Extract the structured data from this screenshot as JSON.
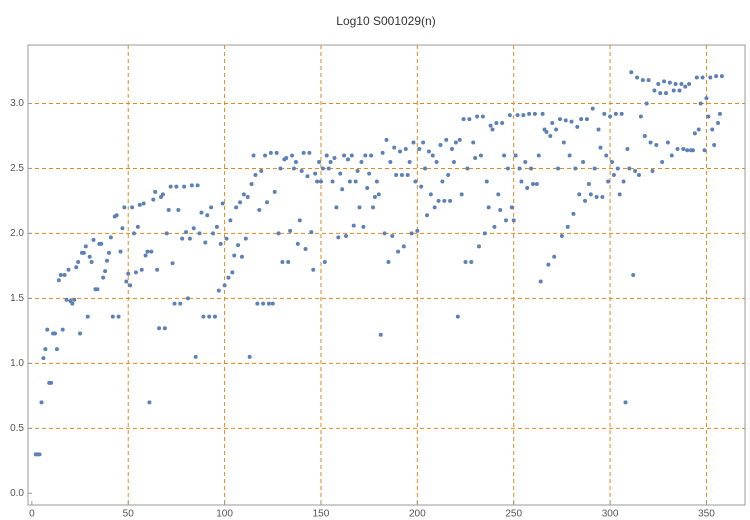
{
  "chart_data": {
    "type": "scatter",
    "title": "Log10 S001029(n)",
    "color": "#5e81b5",
    "grid": true,
    "grid_color": "#e08a1e",
    "xlim": [
      -2,
      370
    ],
    "ylim": [
      -0.09,
      3.45
    ],
    "xticks": [
      0,
      50,
      100,
      150,
      200,
      250,
      300,
      350
    ],
    "yticks": [
      {
        "value": 0,
        "label": "0.0"
      },
      {
        "value": 0.5,
        "label": "0.5"
      },
      {
        "value": 1,
        "label": "1.0"
      },
      {
        "value": 1.5,
        "label": "1.5"
      },
      {
        "value": 2,
        "label": "2.0"
      },
      {
        "value": 2.5,
        "label": "2.5"
      },
      {
        "value": 3,
        "label": "3.0"
      }
    ],
    "x": [
      2,
      3,
      4,
      5,
      6,
      7,
      8,
      9,
      10,
      11,
      12,
      13,
      14,
      15,
      16,
      17,
      18,
      19,
      20,
      21,
      22,
      23,
      24,
      25,
      26,
      27,
      28,
      29,
      30,
      31,
      32,
      33,
      34,
      35,
      36,
      37,
      38,
      39,
      40,
      41,
      42,
      43,
      44,
      45,
      46,
      47,
      48,
      49,
      50,
      51,
      52,
      53,
      54,
      55,
      56,
      57,
      58,
      59,
      60,
      61,
      62,
      63,
      64,
      65,
      66,
      67,
      68,
      69,
      70,
      71,
      72,
      73,
      74,
      75,
      76,
      77,
      78,
      79,
      80,
      81,
      82,
      83,
      84,
      85,
      86,
      87,
      88,
      89,
      90,
      91,
      92,
      93,
      94,
      95,
      96,
      97,
      98,
      99,
      100,
      101,
      102,
      103,
      104,
      105,
      106,
      107,
      108,
      109,
      110,
      111,
      112,
      113,
      114,
      115,
      116,
      117,
      118,
      119,
      120,
      121,
      122,
      123,
      124,
      125,
      126,
      127,
      128,
      129,
      130,
      131,
      132,
      133,
      134,
      135,
      136,
      137,
      138,
      139,
      140,
      141,
      142,
      143,
      144,
      145,
      146,
      147,
      148,
      149,
      150,
      151,
      152,
      153,
      154,
      155,
      156,
      157,
      158,
      159,
      160,
      161,
      162,
      163,
      164,
      165,
      166,
      167,
      168,
      169,
      170,
      171,
      172,
      173,
      174,
      175,
      176,
      177,
      178,
      179,
      180,
      181,
      182,
      183,
      184,
      185,
      186,
      187,
      188,
      189,
      190,
      191,
      192,
      193,
      194,
      195,
      196,
      197,
      198,
      199,
      200,
      201,
      202,
      203,
      204,
      205,
      206,
      207,
      208,
      209,
      210,
      211,
      212,
      213,
      214,
      215,
      216,
      217,
      218,
      219,
      220,
      221,
      222,
      223,
      224,
      225,
      226,
      227,
      228,
      229,
      230,
      231,
      232,
      233,
      234,
      235,
      236,
      237,
      238,
      239,
      240,
      241,
      242,
      243,
      244,
      245,
      246,
      247,
      248,
      249,
      250,
      251,
      252,
      253,
      254,
      255,
      256,
      257,
      258,
      259,
      260,
      261,
      262,
      263,
      264,
      265,
      266,
      267,
      268,
      269,
      270,
      271,
      272,
      273,
      274,
      275,
      276,
      277,
      278,
      279,
      280,
      281,
      282,
      283,
      284,
      285,
      286,
      287,
      288,
      289,
      290,
      291,
      292,
      293,
      294,
      295,
      296,
      297,
      298,
      299,
      300,
      301,
      302,
      303,
      304,
      305,
      306,
      307,
      308,
      309,
      310,
      311,
      312,
      313,
      314,
      315,
      316,
      317,
      318,
      319,
      320,
      321,
      322,
      323,
      324,
      325,
      326,
      327,
      328,
      329,
      330,
      331,
      332,
      333,
      334,
      335,
      336,
      337,
      338,
      339,
      340,
      341,
      342,
      343,
      344,
      345,
      346,
      347,
      348,
      349,
      350,
      351,
      352,
      353,
      354,
      355,
      356,
      357,
      358
    ],
    "values": [
      0.3,
      0.3,
      0.3,
      0.7,
      1.04,
      1.11,
      1.26,
      0.85,
      0.85,
      1.23,
      1.23,
      1.11,
      1.64,
      1.68,
      1.26,
      1.68,
      1.49,
      1.72,
      1.48,
      1.46,
      1.49,
      1.74,
      1.78,
      1.23,
      1.85,
      1.85,
      1.9,
      1.36,
      1.82,
      1.78,
      1.95,
      1.57,
      1.57,
      1.92,
      1.92,
      1.66,
      1.71,
      1.79,
      1.85,
      1.97,
      1.36,
      2.13,
      2.14,
      1.36,
      1.86,
      2.04,
      2.2,
      1.63,
      1.69,
      1.6,
      2.2,
      2.0,
      1.7,
      2.05,
      2.22,
      1.72,
      2.23,
      1.83,
      1.86,
      0.7,
      1.86,
      2.26,
      2.32,
      1.72,
      1.27,
      2.28,
      2.3,
      1.27,
      2.0,
      2.18,
      2.36,
      1.77,
      1.46,
      2.36,
      2.18,
      1.46,
      1.96,
      2.36,
      2.01,
      1.5,
      1.96,
      2.37,
      2.04,
      1.05,
      2.37,
      2.0,
      2.16,
      1.36,
      1.93,
      2.14,
      1.36,
      2.2,
      2.0,
      1.36,
      2.05,
      1.56,
      1.92,
      2.23,
      1.6,
      1.96,
      1.66,
      2.1,
      1.7,
      1.83,
      2.2,
      1.91,
      2.24,
      1.82,
      2.3,
      1.96,
      2.28,
      1.05,
      2.38,
      2.6,
      2.45,
      1.46,
      2.18,
      2.48,
      1.46,
      2.6,
      2.24,
      1.46,
      2.62,
      1.46,
      2.32,
      2.62,
      2.0,
      2.5,
      1.78,
      2.57,
      2.58,
      1.78,
      2.02,
      2.6,
      2.5,
      2.55,
      1.92,
      2.1,
      2.48,
      2.62,
      1.88,
      2.44,
      2.62,
      2.01,
      1.72,
      2.46,
      2.4,
      2.55,
      2.4,
      2.5,
      1.78,
      2.6,
      2.5,
      2.55,
      2.4,
      2.58,
      2.2,
      1.97,
      2.46,
      2.34,
      2.6,
      1.98,
      2.57,
      2.4,
      2.6,
      2.06,
      2.4,
      2.48,
      2.2,
      2.55,
      2.05,
      2.6,
      2.35,
      2.46,
      2.6,
      2.2,
      2.28,
      2.4,
      2.3,
      1.22,
      2.62,
      2.0,
      2.72,
      1.78,
      2.55,
      1.98,
      2.66,
      2.45,
      1.86,
      2.63,
      2.45,
      1.9,
      2.65,
      2.45,
      2.55,
      2.0,
      2.7,
      2.4,
      2.02,
      2.65,
      2.36,
      2.7,
      2.5,
      2.14,
      2.63,
      2.3,
      2.6,
      2.2,
      2.55,
      2.25,
      2.68,
      2.4,
      2.25,
      2.72,
      2.45,
      2.25,
      2.65,
      2.55,
      2.7,
      1.36,
      2.72,
      2.3,
      2.88,
      1.78,
      2.5,
      2.88,
      1.78,
      2.7,
      2.58,
      2.9,
      1.9,
      2.6,
      2.9,
      2.0,
      2.4,
      2.2,
      2.83,
      2.8,
      2.05,
      2.85,
      2.3,
      2.18,
      2.85,
      2.6,
      2.1,
      2.5,
      2.91,
      2.2,
      2.1,
      2.6,
      2.91,
      2.5,
      2.4,
      2.91,
      2.55,
      2.35,
      2.92,
      2.5,
      2.38,
      2.92,
      2.38,
      2.6,
      1.63,
      2.92,
      2.8,
      2.78,
      1.76,
      2.75,
      2.85,
      1.82,
      2.8,
      2.5,
      2.88,
      1.98,
      2.7,
      2.87,
      2.05,
      2.6,
      2.86,
      2.15,
      2.5,
      2.82,
      2.3,
      2.88,
      2.55,
      2.25,
      2.88,
      2.38,
      2.3,
      2.96,
      2.5,
      2.28,
      2.8,
      2.66,
      2.28,
      2.92,
      2.6,
      2.4,
      2.9,
      2.55,
      2.45,
      2.92,
      2.5,
      2.3,
      2.92,
      2.4,
      0.7,
      2.65,
      2.5,
      3.24,
      1.68,
      2.48,
      3.2,
      2.45,
      2.9,
      3.18,
      2.75,
      3.0,
      3.18,
      2.7,
      2.48,
      3.1,
      2.68,
      3.15,
      3.08,
      2.55,
      3.17,
      3.08,
      2.7,
      3.16,
      2.6,
      3.1,
      3.15,
      2.65,
      3.1,
      3.15,
      2.65,
      3.13,
      2.64,
      3.15,
      2.64,
      2.64,
      2.77,
      3.2,
      2.8,
      3.0,
      3.2,
      2.64,
      3.04,
      2.9,
      3.2,
      2.8,
      2.68,
      3.21,
      2.85,
      2.92,
      3.21
    ]
  }
}
